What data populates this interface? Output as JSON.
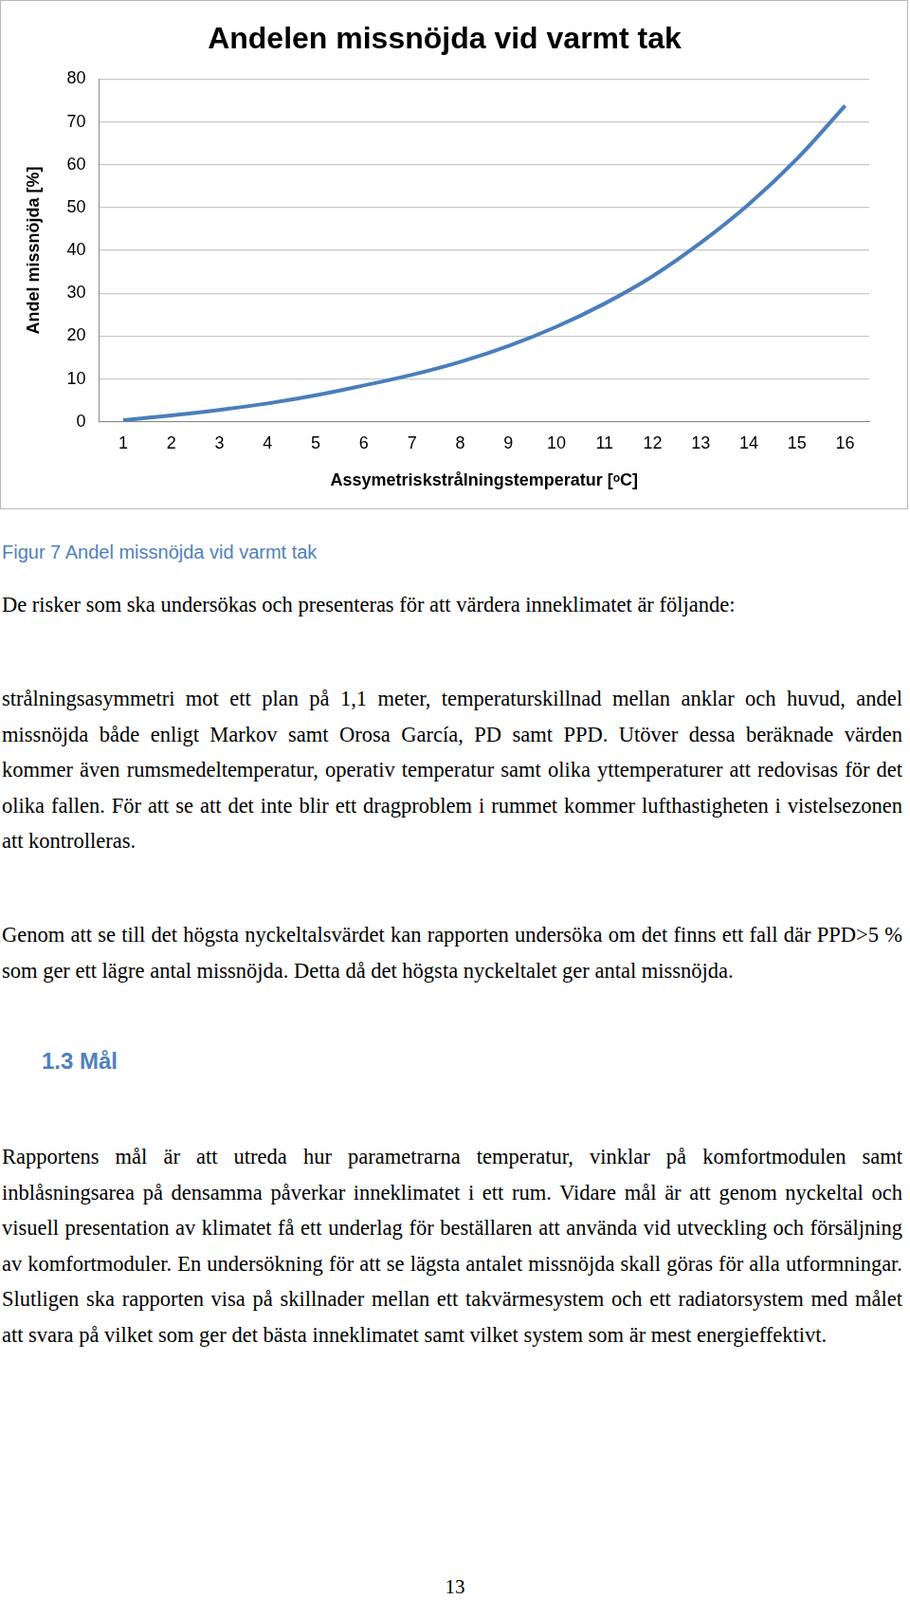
{
  "chart_data": {
    "type": "line",
    "title": "Andelen missnöjda vid varmt tak",
    "x_label": "Assymetriskstrålningstemperatur [ᵒC]",
    "y_label": "Andel missnöjda [%]",
    "categories": [
      1,
      2,
      3,
      4,
      5,
      6,
      7,
      8,
      9,
      10,
      11,
      12,
      13,
      14,
      15,
      16
    ],
    "values": [
      0.4,
      1.5,
      2.8,
      4.3,
      6.2,
      8.5,
      11,
      14,
      17.7,
      22.2,
      27.6,
      34,
      41.8,
      50.8,
      61.4,
      73.8
    ],
    "color": "#4a7ebb",
    "marker": "none",
    "ylim": [
      0,
      80
    ],
    "yticks": [
      0,
      10,
      20,
      30,
      40,
      50,
      60,
      70,
      80
    ],
    "grid": true
  },
  "caption": "Figur 7 Andel missnöjda vid varmt tak",
  "paragraphs_before": [
    "De risker som ska undersökas och presenteras för att värdera inneklimatet är följande:",
    "strålningsasymmetri mot ett plan på 1,1 meter, temperaturskillnad mellan anklar och huvud, andel missnöjda både enligt Markov samt Orosa García, PD samt PPD. Utöver dessa beräknade värden kommer även rumsmedeltemperatur, operativ temperatur samt olika yttemperaturer att redovisas för det olika fallen. För att se att det inte blir ett dragproblem i rummet kommer lufthastigheten i vistelsezonen att kontrolleras.",
    "Genom att se till det högsta nyckeltalsvärdet kan rapporten undersöka om det finns ett fall där PPD>5 % som ger ett lägre antal missnöjda. Detta då det högsta nyckeltalet ger antal missnöjda."
  ],
  "heading": "1.3 Mål",
  "paragraphs_after": [
    "Rapportens mål är att utreda hur parametrarna temperatur, vinklar på komfortmodulen samt inblåsningsarea på densamma påverkar inneklimatet i ett rum. Vidare mål är att genom nyckeltal och visuell presentation av klimatet få ett underlag för beställaren att använda vid utveckling och försäljning av komfortmoduler. En undersökning för att se lägsta antalet missnöjda skall göras för alla utformningar. Slutligen ska rapporten visa på skillnader mellan ett takvärmesystem och ett radiatorsystem med målet att svara på vilket som ger det bästa inneklimatet samt vilket system som är mest energieffektivt."
  ],
  "page_number": 13
}
